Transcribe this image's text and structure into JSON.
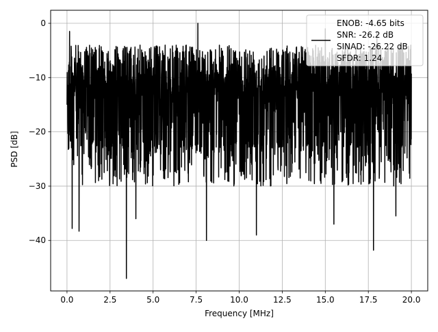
{
  "chart_data": {
    "type": "line",
    "title": "",
    "xlabel": "Frequency [MHz]",
    "ylabel": "PSD [dB]",
    "xlim": [
      -0.95,
      20.95
    ],
    "ylim": [
      -49.3,
      2.4
    ],
    "xticks": [
      0.0,
      2.5,
      5.0,
      7.5,
      10.0,
      12.5,
      15.0,
      17.5,
      20.0
    ],
    "xtick_labels": [
      "0.0",
      "2.5",
      "5.0",
      "7.5",
      "10.0",
      "12.5",
      "15.0",
      "17.5",
      "20.0"
    ],
    "yticks": [
      0,
      -10,
      -20,
      -30,
      -40
    ],
    "ytick_labels": [
      "0",
      "−10",
      "−20",
      "−30",
      "−40"
    ],
    "grid": true,
    "legend_position": "upper-right",
    "line_color": "#000000",
    "series": [
      {
        "legend_lines": [
          "ENOB: -4.65 bits",
          "SNR: -26.2 dB",
          "SINAD: -26.22 dB",
          "SFDR: 1.24"
        ],
        "x_range": [
          0.0,
          20.0
        ],
        "typical_band_db": [
          -28,
          -4
        ],
        "peaks": [
          {
            "x": 0.15,
            "y": -1.5
          },
          {
            "x": 7.6,
            "y": 0.0
          },
          {
            "x": 15.0,
            "y": -1.0
          },
          {
            "x": 18.0,
            "y": -1.5
          }
        ],
        "dips": [
          {
            "x": 0.3,
            "y": -37.8
          },
          {
            "x": 0.7,
            "y": -38.3
          },
          {
            "x": 3.45,
            "y": -47.0
          },
          {
            "x": 4.0,
            "y": -36.0
          },
          {
            "x": 8.1,
            "y": -40.0
          },
          {
            "x": 11.0,
            "y": -39.0
          },
          {
            "x": 15.5,
            "y": -37.0
          },
          {
            "x": 17.8,
            "y": -41.8
          },
          {
            "x": 19.1,
            "y": -35.5
          }
        ]
      }
    ]
  }
}
